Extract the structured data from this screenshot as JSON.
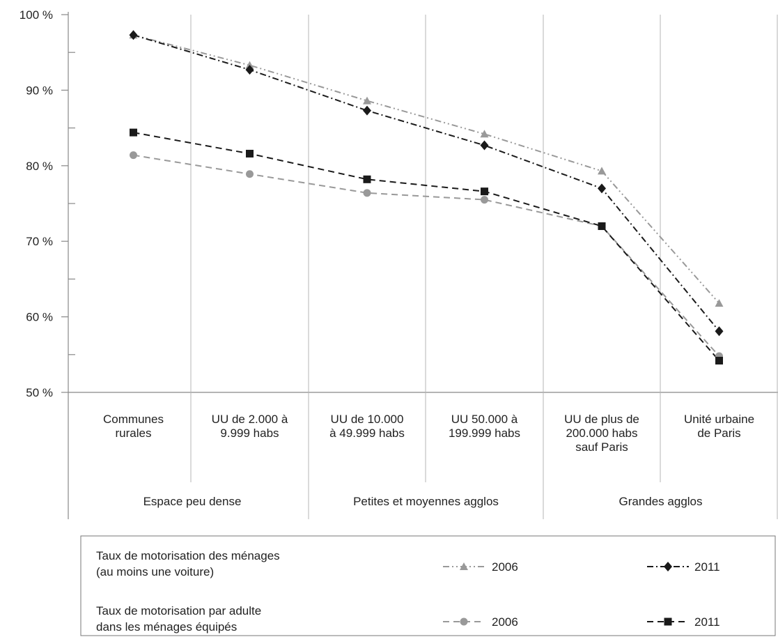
{
  "chart_data": {
    "type": "line",
    "title": "",
    "xlabel": "",
    "ylabel": "",
    "ylim": [
      50,
      100
    ],
    "y_ticks": [
      "100 %",
      "90 %",
      "80 %",
      "70 %",
      "60 %",
      "50 %"
    ],
    "y_tick_values": [
      100,
      90,
      80,
      70,
      60,
      50
    ],
    "grid": "vertical",
    "categories": [
      [
        "Communes",
        "rurales"
      ],
      [
        "UU de 2.000 à",
        "9.999 habs"
      ],
      [
        "UU de 10.000",
        "à 49.999 habs"
      ],
      [
        "UU 50.000 à",
        "199.999 habs"
      ],
      [
        "UU de plus de",
        "200.000 habs",
        "sauf Paris"
      ],
      [
        "Unité urbaine",
        "de Paris"
      ]
    ],
    "groups": [
      {
        "label": "Espace peu dense",
        "span": [
          0,
          1
        ]
      },
      {
        "label": "Petites et moyennes agglos",
        "span": [
          2,
          3
        ]
      },
      {
        "label": "Grandes agglos",
        "span": [
          4,
          5
        ]
      }
    ],
    "series": [
      {
        "key": "menages-2006",
        "values": [
          97.3,
          93.3,
          88.6,
          84.2,
          79.3,
          61.8
        ],
        "color": "#999999",
        "marker": "triangle",
        "dash": "dash-dot-dot"
      },
      {
        "key": "menages-2011",
        "values": [
          97.3,
          92.7,
          87.3,
          82.7,
          77.0,
          58.1
        ],
        "color": "#1a1a1a",
        "marker": "diamond",
        "dash": "dash-dot"
      },
      {
        "key": "adulte-2006",
        "values": [
          81.4,
          78.9,
          76.4,
          75.5,
          72.0,
          54.8
        ],
        "color": "#999999",
        "marker": "circle",
        "dash": "dash"
      },
      {
        "key": "adulte-2011",
        "values": [
          84.4,
          81.6,
          78.2,
          76.6,
          72.0,
          54.2
        ],
        "color": "#1a1a1a",
        "marker": "square",
        "dash": "dash"
      }
    ],
    "legend": {
      "placement": "bottom",
      "rows": [
        {
          "label_lines": [
            "Taux de motorisation des ménages",
            "(au moins une voiture)"
          ],
          "entries": [
            {
              "series": "menages-2006",
              "text": "2006"
            },
            {
              "series": "menages-2011",
              "text": "2011"
            }
          ]
        },
        {
          "label_lines": [
            "Taux de motorisation par adulte",
            "dans les ménages équipés"
          ],
          "entries": [
            {
              "series": "adulte-2006",
              "text": "2006"
            },
            {
              "series": "adulte-2011",
              "text": "2011"
            }
          ]
        }
      ]
    }
  }
}
